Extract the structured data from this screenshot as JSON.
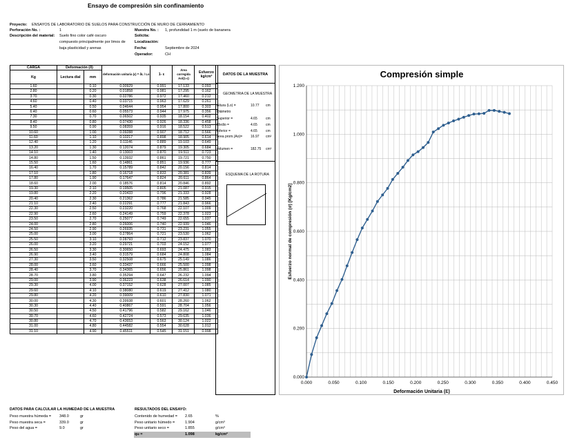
{
  "title": "Ensayo de compresión sin confinamiento",
  "header": {
    "proyecto_label": "Proyecto:",
    "proyecto": "ENSAYOS DE LABORATORIO DE SUELOS PARA CONSTRUCCIÓN DE MURO DE CERRAMIENTO",
    "perforacion_label": "Perforación No. :",
    "perforacion": "1",
    "descripcion_label": "Descripción del material:",
    "descripcion_lines": [
      "Suelo fino color café oscuro",
      "compuesto principalmente por limos de",
      "baja plasticidad y arenas"
    ],
    "muestra_label": "Muestra No. :",
    "muestra": "1, profundidad 1 m (suelo de bananera",
    "solicita_label": "Solicita:",
    "solicita": "",
    "localizacion_label": "Localización:",
    "localizacion": "",
    "fecha_label": "Fecha:",
    "fecha": "Septiembre de 2024",
    "operador_label": "Operador:",
    "operador": "CH"
  },
  "table": {
    "h_carga": "CARGA",
    "h_kg": "Kg",
    "h_deformacion": "Deformación (δ)",
    "h_lectura": "Lectura dial",
    "h_mm": "mm",
    "h_unitaria": "deformación unitaria (ε) = δL / Lo",
    "h_1e": "1- ε",
    "h_area": "Área corregida Ao/(1-ε)",
    "h_esfuerzo": "Esfuerzo kg/cm²",
    "rows": [
      [
        "1.60",
        "0.10",
        "0.00929",
        "0.991",
        "17.133",
        "0.093"
      ],
      [
        "2.80",
        "0.20",
        "0.01858",
        "0.981",
        "17.295",
        "0.162"
      ],
      [
        "3.70",
        "0.30",
        "0.02786",
        "0.972",
        "17.460",
        "0.212"
      ],
      [
        "4.60",
        "0.40",
        "0.03715",
        "0.963",
        "17.629",
        "0.261"
      ],
      [
        "5.40",
        "0.50",
        "0.04644",
        "0.954",
        "17.800",
        "0.303"
      ],
      [
        "6.40",
        "0.60",
        "0.05573",
        "0.944",
        "17.975",
        "0.356"
      ],
      [
        "7.30",
        "0.70",
        "0.06502",
        "0.935",
        "18.154",
        "0.402"
      ],
      [
        "8.40",
        "0.80",
        "0.07430",
        "0.926",
        "18.336",
        "0.458"
      ],
      [
        "9.50",
        "0.90",
        "0.08359",
        "0.916",
        "18.522",
        "0.513"
      ],
      [
        "10.60",
        "1.00",
        "0.09288",
        "0.907",
        "18.712",
        "0.566"
      ],
      [
        "11.60",
        "1.10",
        "0.10217",
        "0.898",
        "18.905",
        "0.614"
      ],
      [
        "12.40",
        "1.20",
        "0.11146",
        "0.889",
        "19.103",
        "0.649"
      ],
      [
        "13.20",
        "1.30",
        "0.12074",
        "0.879",
        "19.305",
        "0.684"
      ],
      [
        "14.10",
        "1.40",
        "0.13003",
        "0.870",
        "19.511",
        "0.723"
      ],
      [
        "14.80",
        "1.50",
        "0.13932",
        "0.861",
        "19.721",
        "0.750"
      ],
      [
        "15.50",
        "1.60",
        "0.14861",
        "0.851",
        "19.936",
        "0.777"
      ],
      [
        "16.40",
        "1.70",
        "0.15789",
        "0.842",
        "20.156",
        "0.814"
      ],
      [
        "17.10",
        "1.80",
        "0.16718",
        "0.833",
        "20.381",
        "0.839"
      ],
      [
        "17.80",
        "1.90",
        "0.17647",
        "0.824",
        "20.611",
        "0.864"
      ],
      [
        "18.60",
        "2.00",
        "0.18576",
        "0.814",
        "20.846",
        "0.892"
      ],
      [
        "19.30",
        "2.10",
        "0.19505",
        "0.805",
        "21.087",
        "0.915"
      ],
      [
        "19.80",
        "2.20",
        "0.20433",
        "0.796",
        "21.333",
        "0.928"
      ],
      [
        "20.40",
        "2.30",
        "0.21362",
        "0.786",
        "21.585",
        "0.945"
      ],
      [
        "21.10",
        "2.40",
        "0.22291",
        "0.777",
        "21.843",
        "0.966"
      ],
      [
        "22.30",
        "2.50",
        "0.23220",
        "0.768",
        "22.107",
        "1.009"
      ],
      [
        "22.90",
        "2.60",
        "0.24149",
        "0.759",
        "22.378",
        "1.023"
      ],
      [
        "23.50",
        "2.70",
        "0.25077",
        "0.749",
        "22.655",
        "1.037"
      ],
      [
        "24.00",
        "2.80",
        "0.26006",
        "0.740",
        "22.939",
        "1.046"
      ],
      [
        "24.50",
        "2.90",
        "0.26935",
        "0.731",
        "23.231",
        "1.055"
      ],
      [
        "25.00",
        "3.00",
        "0.27864",
        "0.721",
        "23.530",
        "1.062"
      ],
      [
        "25.50",
        "3.10",
        "0.28793",
        "0.712",
        "23.837",
        "1.070"
      ],
      [
        "26.00",
        "3.20",
        "0.29721",
        "0.703",
        "24.152",
        "1.077"
      ],
      [
        "26.50",
        "3.30",
        "0.30650",
        "0.693",
        "24.475",
        "1.083"
      ],
      [
        "26.90",
        "3.40",
        "0.31579",
        "0.684",
        "24.808",
        "1.084"
      ],
      [
        "27.30",
        "3.50",
        "0.32508",
        "0.675",
        "25.149",
        "1.086"
      ],
      [
        "28.00",
        "3.60",
        "0.33437",
        "0.666",
        "25.500",
        "1.098"
      ],
      [
        "28.40",
        "3.70",
        "0.34365",
        "0.656",
        "25.861",
        "1.098"
      ],
      [
        "28.70",
        "3.80",
        "0.35294",
        "0.647",
        "26.232",
        "1.094"
      ],
      [
        "29.00",
        "3.90",
        "0.36223",
        "0.638",
        "26.614",
        "1.090"
      ],
      [
        "29.30",
        "4.00",
        "0.37152",
        "0.628",
        "27.007",
        "1.085"
      ],
      [
        "29.60",
        "4.10",
        "0.38080",
        "0.619",
        "27.412",
        "1.080"
      ],
      [
        "29.80",
        "4.20",
        "0.39009",
        "0.610",
        "27.830",
        "1.071"
      ],
      [
        "30.00",
        "4.30",
        "0.39938",
        "0.601",
        "28.260",
        "1.062"
      ],
      [
        "30.30",
        "4.40",
        "0.40867",
        "0.591",
        "28.704",
        "1.056"
      ],
      [
        "30.50",
        "4.50",
        "0.41796",
        "0.582",
        "29.162",
        "1.046"
      ],
      [
        "30.70",
        "4.60",
        "0.42724",
        "0.573",
        "29.635",
        "1.036"
      ],
      [
        "30.80",
        "4.70",
        "0.43653",
        "0.563",
        "30.124",
        "1.022"
      ],
      [
        "31.00",
        "4.80",
        "0.44582",
        "0.554",
        "30.628",
        "1.012"
      ],
      [
        "31.10",
        "4.90",
        "0.45511",
        "0.545",
        "31.151",
        "0.998"
      ]
    ]
  },
  "sample": {
    "title": "DATOS DE LA MUESTRA",
    "geometria": "GEOMETRIA DE LA MUESTRA",
    "altura_label": "Altura (Lo) =",
    "altura": "10.77",
    "altura_unit": "cm",
    "diametro_label": "Diámetro",
    "superior_label": "Superior =",
    "superior": "4.65",
    "superior_unit": "cm",
    "medio_label": "Medio =",
    "medio": "4.65",
    "medio_unit": "cm",
    "inferior_label": "Inferior =",
    "inferior": "4.65",
    "inferior_unit": "cm",
    "area_label": "Area prom.(Ao)=",
    "area": "16.97",
    "area_unit": "cm²",
    "volumen_label": "volumen =",
    "volumen": "182.75",
    "volumen_unit": "cm³",
    "esquema": "ESQUEMA DE LA ROTURA"
  },
  "humedad": {
    "title": "DATOS PARA CALCULAR LA HUMEDAD DE LA MUESTRA",
    "rows": [
      [
        "Peso muestra húmeda =",
        "348.0",
        "gr"
      ],
      [
        "Peso muestra seca =",
        "339.0",
        "gr"
      ],
      [
        "Peso del agua =",
        "9.0",
        "gr"
      ]
    ]
  },
  "resultados": {
    "title": "RESULTADOS DEL ENSAYO:",
    "rows": [
      [
        "Contenido de humedad =",
        "2.65",
        "%"
      ],
      [
        "Peso unitario húmedo =",
        "1.904",
        "g/cm³"
      ],
      [
        "Peso unitario seco =",
        "1.855",
        "g/cm³"
      ]
    ],
    "qu_label": "qu =",
    "qu": "1.098",
    "qu_unit": "kg/cm²"
  },
  "chart_data": {
    "type": "scatter",
    "title": "Compresión simple",
    "xlabel": "Deformación Unitaria (Ɛ)",
    "ylabel": "Esfuerzo normal de compresión (σ) [Kg/cm2]",
    "xlim": [
      0,
      0.45
    ],
    "ylim": [
      0,
      1.2
    ],
    "xticks": [
      "0.000",
      "0.050",
      "0.100",
      "0.150",
      "0.200",
      "0.250",
      "0.300",
      "0.350",
      "0.400",
      "0.450"
    ],
    "yticks": [
      "0.000",
      "0.200",
      "0.400",
      "0.600",
      "0.800",
      "1.000",
      "1.200"
    ],
    "grid": true,
    "line_color": "#2f5f8f",
    "series": [
      {
        "x": [
          0,
          0.00929,
          0.01858,
          0.02786,
          0.03715,
          0.04644,
          0.05573,
          0.06502,
          0.0743,
          0.08359,
          0.09288,
          0.10217,
          0.11146,
          0.12074,
          0.13003,
          0.13932,
          0.14861,
          0.15789,
          0.16718,
          0.17647,
          0.18576,
          0.19505,
          0.20433,
          0.21362,
          0.22291,
          0.2322,
          0.24149,
          0.25077,
          0.26006,
          0.26935,
          0.27864,
          0.28793,
          0.29721,
          0.3065,
          0.31579,
          0.32508,
          0.33437,
          0.34365,
          0.35294,
          0.36223,
          0.37152
        ],
        "y": [
          0,
          0.093,
          0.162,
          0.212,
          0.261,
          0.303,
          0.356,
          0.402,
          0.458,
          0.513,
          0.566,
          0.614,
          0.649,
          0.684,
          0.723,
          0.75,
          0.777,
          0.814,
          0.839,
          0.864,
          0.892,
          0.915,
          0.928,
          0.945,
          0.966,
          1.009,
          1.023,
          1.037,
          1.046,
          1.055,
          1.062,
          1.07,
          1.077,
          1.083,
          1.084,
          1.086,
          1.098,
          1.098,
          1.094,
          1.09,
          1.085
        ]
      }
    ]
  }
}
